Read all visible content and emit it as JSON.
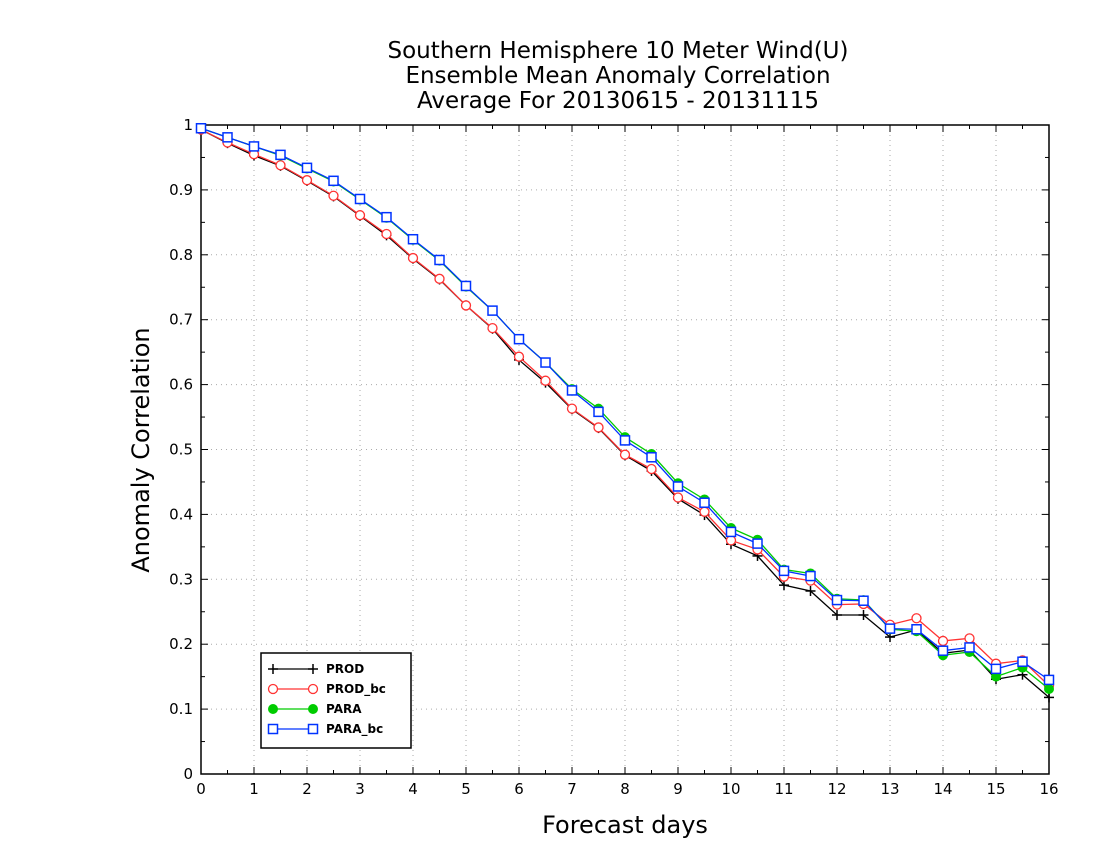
{
  "chart_data": {
    "type": "line",
    "title_lines": [
      "Southern Hemisphere 10 Meter Wind(U)",
      "Ensemble Mean Anomaly Correlation",
      "Average For 20130615 - 20131115"
    ],
    "xlabel": "Forecast days",
    "ylabel": "Anomaly Correlation",
    "xlim": [
      0,
      16
    ],
    "ylim": [
      0,
      1
    ],
    "x_ticks": [
      0,
      1,
      2,
      3,
      4,
      5,
      6,
      7,
      8,
      9,
      10,
      11,
      12,
      13,
      14,
      15,
      16
    ],
    "y_ticks": [
      0,
      0.1,
      0.2,
      0.3,
      0.4,
      0.5,
      0.6,
      0.7,
      0.8,
      0.9,
      1
    ],
    "x_tick_labels": [
      "0",
      "1",
      "2",
      "3",
      "4",
      "5",
      "6",
      "7",
      "8",
      "9",
      "10",
      "11",
      "12",
      "13",
      "14",
      "15",
      "16"
    ],
    "y_tick_labels": [
      "0",
      "0.1",
      "0.2",
      "0.3",
      "0.4",
      "0.5",
      "0.6",
      "0.7",
      "0.8",
      "0.9",
      "1"
    ],
    "grid": true,
    "legend_position": "bottom-left",
    "x": [
      0,
      0.5,
      1,
      1.5,
      2,
      2.5,
      3,
      3.5,
      4,
      4.5,
      5,
      5.5,
      6,
      6.5,
      7,
      7.5,
      8,
      8.5,
      9,
      9.5,
      10,
      10.5,
      11,
      11.5,
      12,
      12.5,
      13,
      13.5,
      14,
      14.5,
      15,
      15.5,
      16
    ],
    "series": [
      {
        "name": "PROD",
        "color": "#000000",
        "marker": "plus",
        "values": [
          0.993,
          0.972,
          0.953,
          0.937,
          0.914,
          0.89,
          0.86,
          0.83,
          0.794,
          0.762,
          0.722,
          0.686,
          0.638,
          0.603,
          0.562,
          0.533,
          0.491,
          0.467,
          0.424,
          0.399,
          0.354,
          0.336,
          0.291,
          0.282,
          0.245,
          0.245,
          0.211,
          0.222,
          0.186,
          0.191,
          0.146,
          0.153,
          0.118
        ]
      },
      {
        "name": "PROD_bc",
        "color": "#ff3333",
        "marker": "circle-open",
        "values": [
          0.993,
          0.973,
          0.955,
          0.938,
          0.915,
          0.891,
          0.861,
          0.832,
          0.795,
          0.763,
          0.722,
          0.687,
          0.643,
          0.606,
          0.563,
          0.534,
          0.492,
          0.47,
          0.426,
          0.404,
          0.36,
          0.346,
          0.304,
          0.298,
          0.261,
          0.262,
          0.23,
          0.24,
          0.205,
          0.209,
          0.17,
          0.175,
          0.136
        ]
      },
      {
        "name": "PARA",
        "color": "#00cc00",
        "marker": "circle-filled",
        "values": [
          0.995,
          0.981,
          0.967,
          0.953,
          0.933,
          0.913,
          0.885,
          0.857,
          0.823,
          0.791,
          0.751,
          0.714,
          0.67,
          0.634,
          0.593,
          0.563,
          0.519,
          0.493,
          0.448,
          0.423,
          0.379,
          0.361,
          0.315,
          0.309,
          0.27,
          0.268,
          0.223,
          0.22,
          0.183,
          0.188,
          0.15,
          0.164,
          0.131
        ]
      },
      {
        "name": "PARA_bc",
        "color": "#0033ff",
        "marker": "square-open",
        "values": [
          0.995,
          0.981,
          0.967,
          0.954,
          0.934,
          0.914,
          0.886,
          0.858,
          0.824,
          0.792,
          0.752,
          0.714,
          0.67,
          0.634,
          0.591,
          0.558,
          0.514,
          0.488,
          0.443,
          0.418,
          0.373,
          0.355,
          0.313,
          0.305,
          0.268,
          0.267,
          0.224,
          0.223,
          0.19,
          0.195,
          0.162,
          0.173,
          0.145
        ]
      }
    ]
  }
}
